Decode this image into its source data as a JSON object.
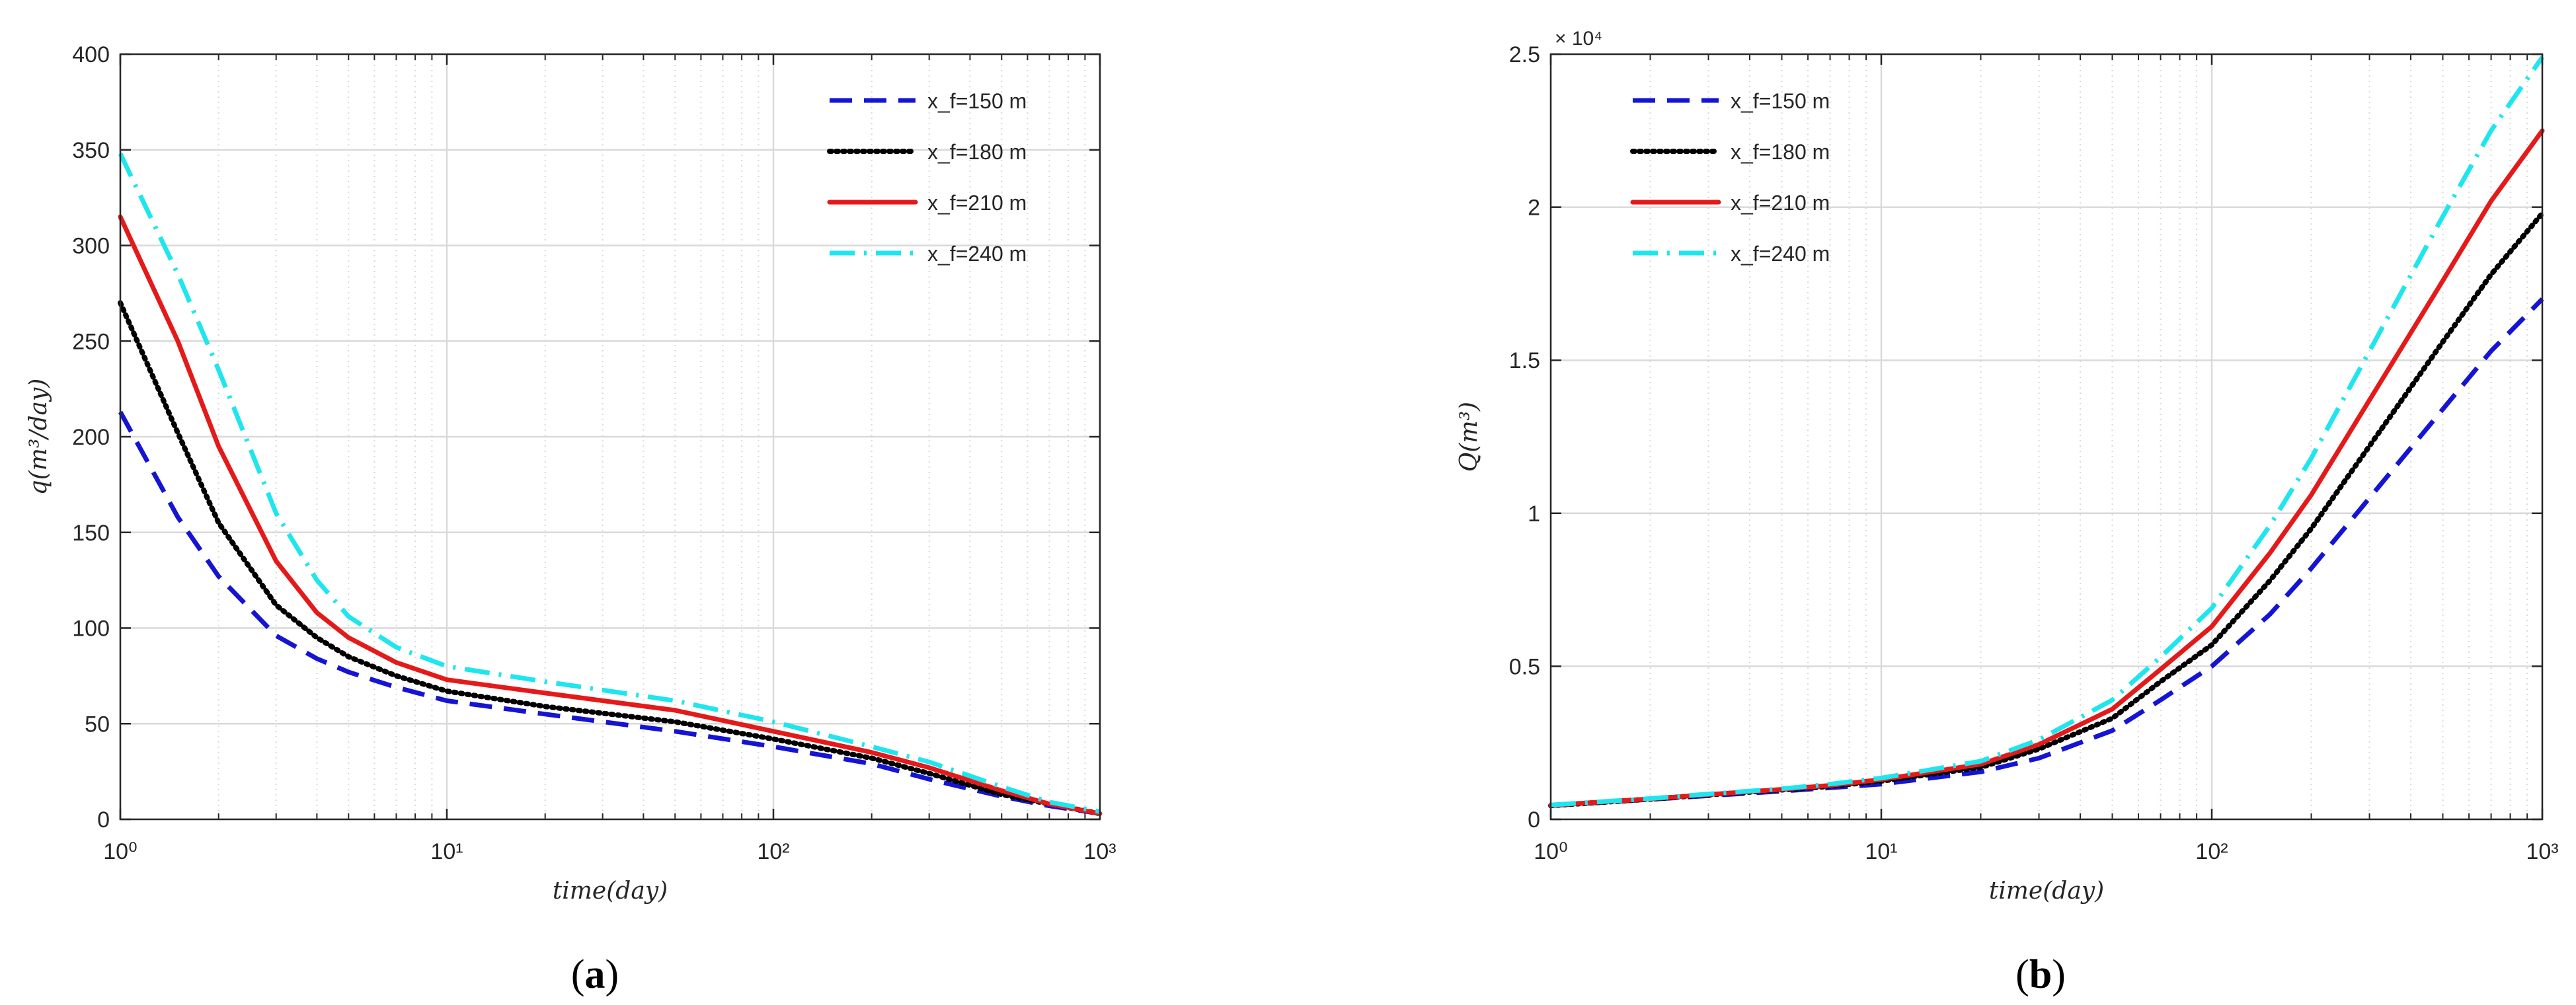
{
  "colors": {
    "blue": "#1414d2",
    "black": "#000000",
    "red": "#e41a1a",
    "cyan": "#1fe5ee",
    "grid": "#d9d9d9",
    "axis": "#262626"
  },
  "chart_data": [
    {
      "type": "line",
      "panel_caption": "(a)",
      "caption_letter": "a",
      "xlabel": "time(day)",
      "ylabel": "q(m³/day)",
      "xscale": "log",
      "xlim": [
        1,
        1000
      ],
      "ylim": [
        0,
        400
      ],
      "xticks": [
        1,
        10,
        100,
        1000
      ],
      "xtick_labels": [
        "10⁰",
        "10¹",
        "10²",
        "10³"
      ],
      "yticks": [
        0,
        50,
        100,
        150,
        200,
        250,
        300,
        350,
        400
      ],
      "ytick_labels": [
        "0",
        "50",
        "100",
        "150",
        "200",
        "250",
        "300",
        "350",
        "400"
      ],
      "exponent_label": "",
      "grid": true,
      "legend_position": "top-right",
      "x": [
        1,
        1.5,
        2,
        3,
        4,
        5,
        7,
        10,
        20,
        50,
        100,
        200,
        300,
        500,
        700,
        1000
      ],
      "series": [
        {
          "name": "150",
          "legend": "x_f=150 m",
          "style": "dashed",
          "color": "#1414d2",
          "values": [
            213,
            158,
            127,
            96,
            84,
            77,
            69,
            62,
            55,
            46,
            38,
            29,
            21,
            12,
            7,
            3
          ]
        },
        {
          "name": "180",
          "legend": "x_f=180 m",
          "style": "dotted",
          "color": "#000000",
          "values": [
            270,
            202,
            155,
            112,
            95,
            85,
            75,
            67,
            59,
            51,
            42,
            32,
            24,
            13,
            8,
            3
          ]
        },
        {
          "name": "210",
          "legend": "x_f=210 m",
          "style": "solid",
          "color": "#e41a1a",
          "values": [
            315,
            250,
            195,
            135,
            108,
            95,
            82,
            73,
            66,
            57,
            46,
            35,
            27,
            15,
            8,
            3
          ]
        },
        {
          "name": "240",
          "legend": "x_f=240 m",
          "style": "dashdot",
          "color": "#1fe5ee",
          "values": [
            348,
            285,
            235,
            160,
            125,
            106,
            90,
            80,
            72,
            62,
            51,
            38,
            30,
            17,
            9,
            4
          ]
        }
      ]
    },
    {
      "type": "line",
      "panel_caption": "(b)",
      "caption_letter": "b",
      "xlabel": "time(day)",
      "ylabel": "Q(m³)",
      "xscale": "log",
      "xlim": [
        1,
        1000
      ],
      "ylim": [
        0,
        25000
      ],
      "xticks": [
        1,
        10,
        100,
        1000
      ],
      "xtick_labels": [
        "10⁰",
        "10¹",
        "10²",
        "10³"
      ],
      "yticks": [
        0,
        5000,
        10000,
        15000,
        20000,
        25000
      ],
      "ytick_labels": [
        "0",
        "0.5",
        "1",
        "1.5",
        "2",
        "2.5"
      ],
      "exponent_label": "× 10⁴",
      "grid": true,
      "legend_position": "top-left",
      "x": [
        1,
        2,
        3,
        5,
        7,
        10,
        20,
        30,
        50,
        70,
        100,
        150,
        200,
        300,
        500,
        700,
        1000
      ],
      "series": [
        {
          "name": "150",
          "legend": "x_f=150 m",
          "style": "dashed",
          "color": "#1414d2",
          "values": [
            450,
            650,
            770,
            920,
            1030,
            1150,
            1550,
            2000,
            2900,
            3900,
            5000,
            6700,
            8200,
            10500,
            13400,
            15300,
            17000
          ]
        },
        {
          "name": "180",
          "legend": "x_f=180 m",
          "style": "dotted",
          "color": "#000000",
          "values": [
            450,
            660,
            800,
            960,
            1080,
            1250,
            1700,
            2300,
            3300,
            4500,
            5700,
            7800,
            9500,
            12200,
            15600,
            17800,
            19800
          ]
        },
        {
          "name": "210",
          "legend": "x_f=210 m",
          "style": "solid",
          "color": "#e41a1a",
          "values": [
            460,
            670,
            810,
            980,
            1110,
            1300,
            1800,
            2450,
            3600,
            4900,
            6300,
            8700,
            10600,
            13700,
            17600,
            20200,
            22500
          ]
        },
        {
          "name": "240",
          "legend": "x_f=240 m",
          "style": "dashdot",
          "color": "#1fe5ee",
          "values": [
            470,
            680,
            830,
            1000,
            1150,
            1350,
            1900,
            2600,
            3900,
            5300,
            6900,
            9600,
            11800,
            15300,
            19700,
            22500,
            24900
          ]
        }
      ]
    }
  ]
}
